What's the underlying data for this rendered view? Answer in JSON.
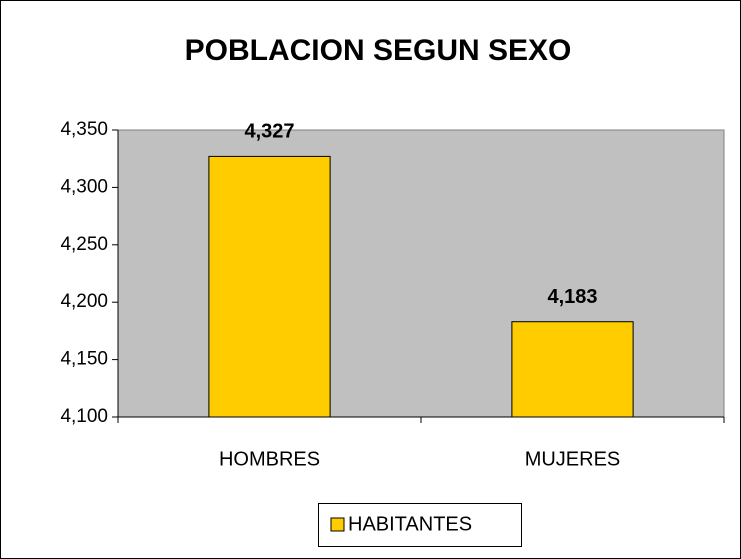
{
  "chart_data": {
    "type": "bar",
    "title": "POBLACION SEGUN SEXO",
    "categories": [
      "HOMBRES",
      "MUJERES"
    ],
    "series": [
      {
        "name": "HABITANTES",
        "color": "#ffcc00",
        "values": [
          4327,
          4183
        ],
        "value_labels": [
          "4,327",
          "4,183"
        ]
      }
    ],
    "ylim": [
      4100,
      4350
    ],
    "yticks": [
      {
        "value": 4100,
        "label": "4,100"
      },
      {
        "value": 4150,
        "label": "4,150"
      },
      {
        "value": 4200,
        "label": "4,200"
      },
      {
        "value": 4250,
        "label": "4,250"
      },
      {
        "value": 4300,
        "label": "4,300"
      },
      {
        "value": 4350,
        "label": "4,350"
      }
    ],
    "legend": "bottom"
  }
}
